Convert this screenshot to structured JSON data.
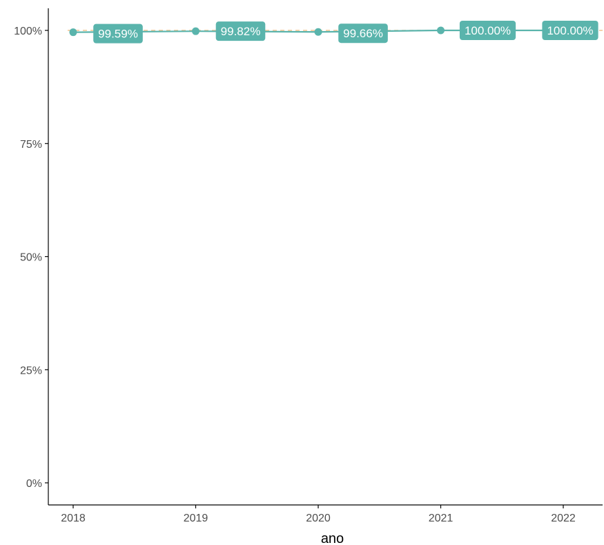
{
  "chart_data": {
    "type": "line",
    "title": "",
    "xlabel": "ano",
    "ylabel": "",
    "x": [
      2018,
      2019,
      2020,
      2021,
      2022
    ],
    "x_tick_labels": [
      "2018",
      "2019",
      "2020",
      "2021",
      "2022"
    ],
    "y_tick_values": [
      0,
      0.25,
      0.5,
      0.75,
      1.0
    ],
    "y_tick_labels": [
      "0%",
      "25%",
      "50%",
      "75%",
      "100%"
    ],
    "ylim": [
      0,
      1.0
    ],
    "series": [
      {
        "values": [
          0.9959,
          0.9982,
          0.9966,
          1.0,
          1.0
        ],
        "data_labels": [
          "99.59%",
          "99.82%",
          "99.66%",
          "100.00%",
          "100.00%"
        ]
      }
    ],
    "reference_line": {
      "y": 1.0,
      "style": "dashed"
    },
    "grid": false,
    "legend": "none",
    "colors": {
      "series": "#5ab4ac",
      "reference_line": "#f2c48f",
      "label_text": "#ffffff",
      "axis": "#000000",
      "tick_text": "#4d4d4d"
    }
  }
}
